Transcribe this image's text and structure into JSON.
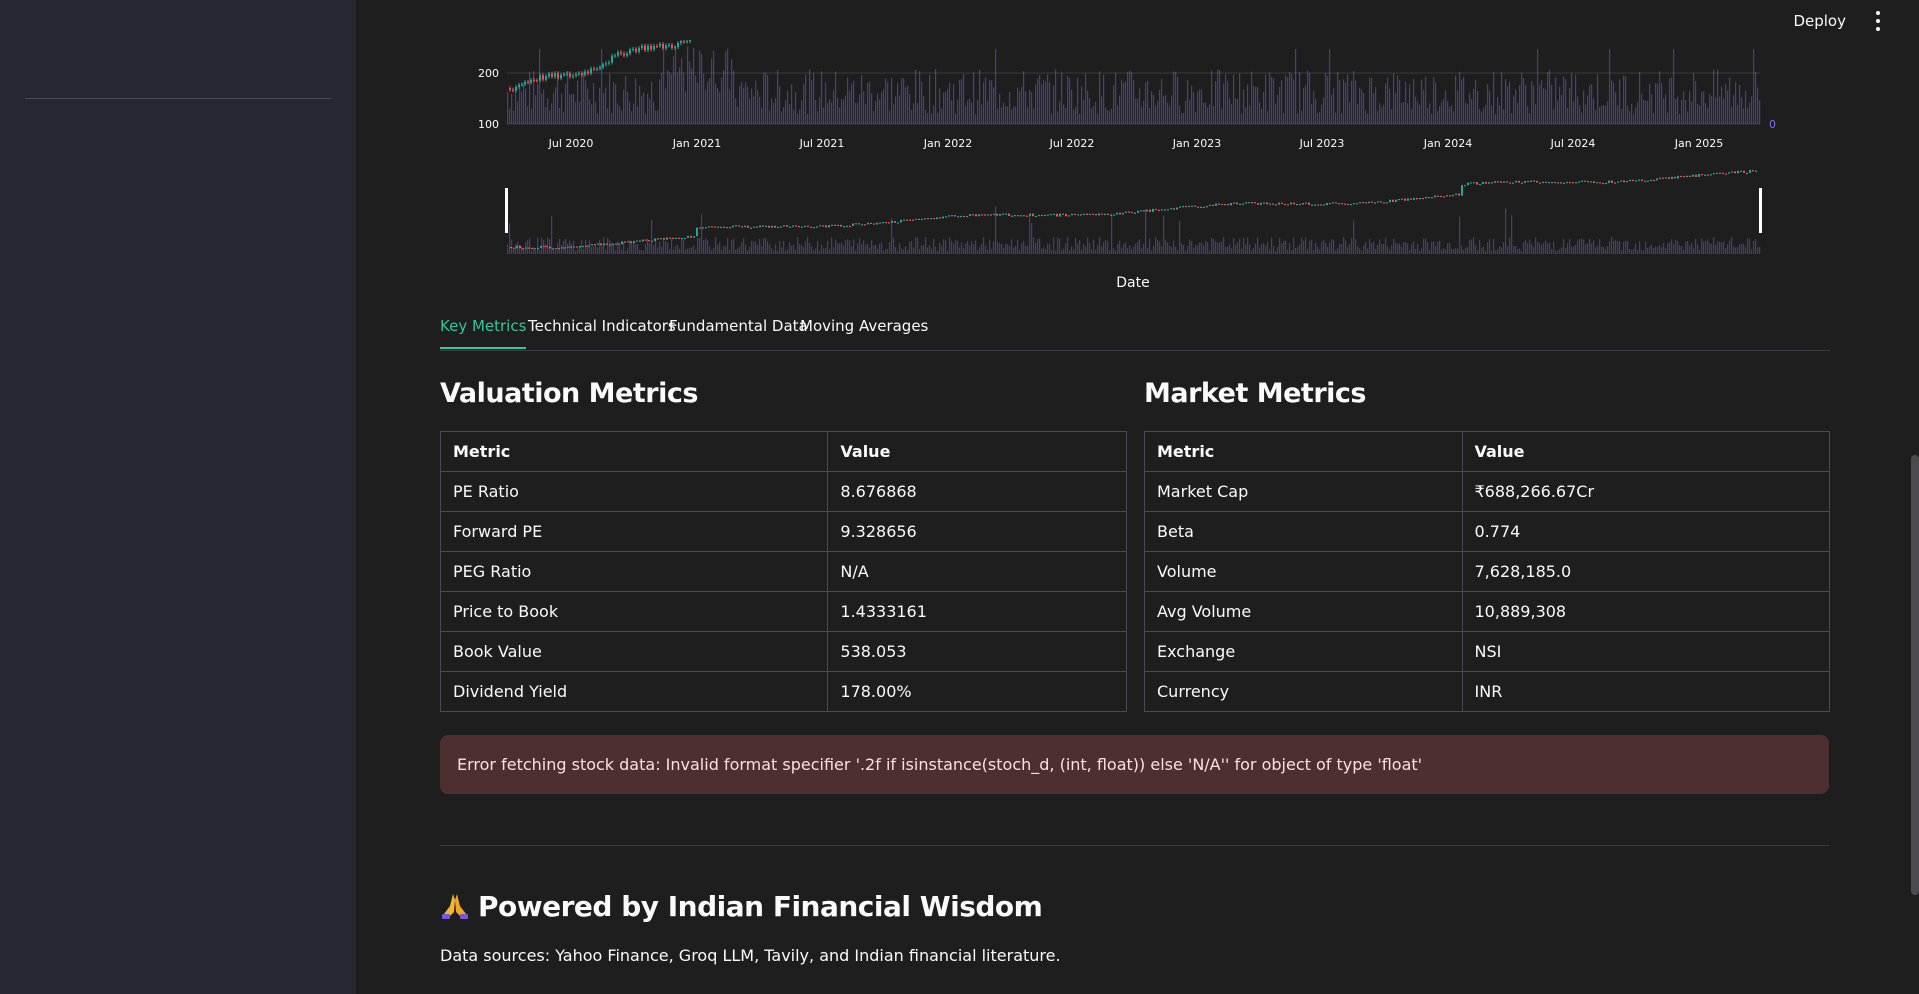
{
  "topbar": {
    "deploy_label": "Deploy",
    "menu_icon": "kebab-menu-icon"
  },
  "chart_data": {
    "type": "candlestick",
    "xlabel": "Date",
    "x_ticks": [
      "Jul 2020",
      "Jan 2021",
      "Jul 2021",
      "Jan 2022",
      "Jul 2022",
      "Jan 2023",
      "Jul 2023",
      "Jan 2024",
      "Jul 2024",
      "Jan 2025"
    ],
    "y_ticks": [
      100,
      200
    ],
    "y2_ticks": [
      0
    ],
    "colors": {
      "up": "#26a69a",
      "down": "#ef5350",
      "volume": "#6a5fd8",
      "grid": "#3a3b42"
    }
  },
  "tabs": [
    "Key Metrics",
    "Technical Indicators",
    "Fundamental Data",
    "Moving Averages"
  ],
  "valuation": {
    "title": "Valuation Metrics",
    "header": [
      "Metric",
      "Value"
    ],
    "rows": [
      [
        "PE Ratio",
        "8.676868"
      ],
      [
        "Forward PE",
        "9.328656"
      ],
      [
        "PEG Ratio",
        "N/A"
      ],
      [
        "Price to Book",
        "1.4333161"
      ],
      [
        "Book Value",
        "538.053"
      ],
      [
        "Dividend Yield",
        "178.00%"
      ]
    ]
  },
  "market": {
    "title": "Market Metrics",
    "header": [
      "Metric",
      "Value"
    ],
    "rows": [
      [
        "Market Cap",
        "₹688,266.67Cr"
      ],
      [
        "Beta",
        "0.774"
      ],
      [
        "Volume",
        "7,628,185.0"
      ],
      [
        "Avg Volume",
        "10,889,308"
      ],
      [
        "Exchange",
        "NSI"
      ],
      [
        "Currency",
        "INR"
      ]
    ]
  },
  "error_message": "Error fetching stock data: Invalid format specifier '.2f if isinstance(stoch_d, (int, float)) else 'N/A'' for object of type 'float'",
  "footer": {
    "title": "Powered by Indian Financial Wisdom",
    "icon": "folded-hands-icon",
    "text": "Data sources: Yahoo Finance, Groq LLM, Tavily, and Indian financial literature."
  }
}
